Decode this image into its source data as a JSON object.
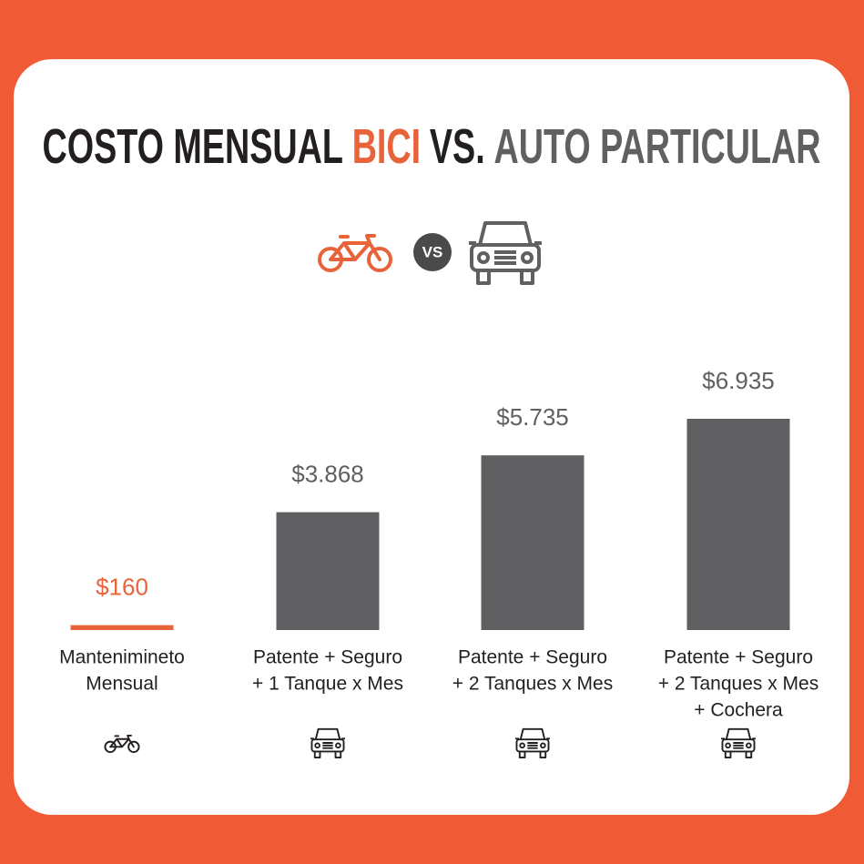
{
  "chart_data": {
    "type": "bar",
    "title_segments": [
      {
        "text": "COSTO MENSUAL",
        "color": "#231f20"
      },
      {
        "text": "BICI",
        "color": "#e8633a"
      },
      {
        "text": "VS.",
        "color": "#231f20"
      },
      {
        "text": "AUTO PARTICULAR",
        "color": "#606062"
      }
    ],
    "vs_label": "VS",
    "categories": [
      [
        "Mantenimineto",
        "Mensual"
      ],
      [
        "Patente + Seguro",
        "+ 1 Tanque x Mes"
      ],
      [
        "Patente + Seguro",
        "+ 2 Tanques x Mes"
      ],
      [
        "Patente + Seguro",
        "+ 2 Tanques x Mes",
        "+ Cochera"
      ]
    ],
    "values": [
      160,
      3868,
      5735,
      6935
    ],
    "value_labels": [
      "$160",
      "$3.868",
      "$5.735",
      "$6.935"
    ],
    "colors": [
      "#e8633a",
      "#606062",
      "#606062",
      "#606062"
    ],
    "icons": [
      "bike",
      "car",
      "car",
      "car"
    ]
  }
}
